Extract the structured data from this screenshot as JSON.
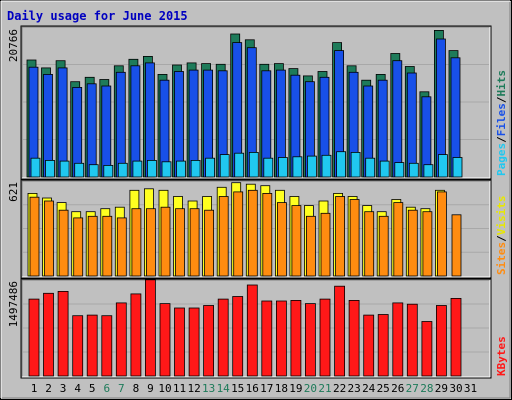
{
  "title": "Daily usage for June 2015",
  "colors": {
    "background": "#c0c0c0",
    "title": "#0000c0",
    "hits": "#1e7b5a",
    "files": "#1850e8",
    "pages": "#20c8f0",
    "visits": "#ffff20",
    "sites": "#ff8c10",
    "kbytes": "#ff1818",
    "weekend_day": "#1e7b5a"
  },
  "panels": {
    "top": {
      "max_label": "20766",
      "legend": [
        "Pages",
        "Files",
        "Hits"
      ],
      "legend_sep": "/"
    },
    "middle": {
      "max_label": "621",
      "legend": [
        "Sites",
        "Visits"
      ],
      "legend_sep": "/"
    },
    "bottom": {
      "max_label": "1497486",
      "legend": [
        "KBytes"
      ]
    }
  },
  "chart_data": [
    {
      "type": "bar",
      "title": "Daily usage for June 2015",
      "categories": [
        "1",
        "2",
        "3",
        "4",
        "5",
        "6",
        "7",
        "8",
        "9",
        "10",
        "11",
        "12",
        "13",
        "14",
        "15",
        "16",
        "17",
        "18",
        "19",
        "20",
        "21",
        "22",
        "23",
        "24",
        "25",
        "26",
        "27",
        "28",
        "29",
        "30",
        "31"
      ],
      "weekend_days": [
        "6",
        "7",
        "13",
        "14",
        "20",
        "21",
        "27",
        "28"
      ],
      "ylim": [
        0,
        20766
      ],
      "series": [
        {
          "name": "Hits",
          "values": [
            16200,
            15100,
            16100,
            13200,
            13800,
            13500,
            15400,
            16300,
            16700,
            14200,
            15500,
            15800,
            15700,
            15600,
            19800,
            19000,
            15600,
            15700,
            15000,
            14000,
            14600,
            18600,
            15400,
            13400,
            14200,
            17100,
            15300,
            11800,
            20300,
            17500,
            null
          ]
        },
        {
          "name": "Files",
          "values": [
            15200,
            14200,
            15100,
            12400,
            12900,
            12600,
            14500,
            15400,
            15800,
            13400,
            14600,
            14800,
            14800,
            14700,
            18600,
            17900,
            14700,
            14800,
            14100,
            13200,
            13800,
            17500,
            14500,
            12600,
            13400,
            16100,
            14400,
            11100,
            19100,
            16500,
            null
          ]
        },
        {
          "name": "Pages",
          "values": [
            2600,
            2300,
            2200,
            1900,
            1700,
            1600,
            1900,
            2200,
            2300,
            2100,
            2200,
            2300,
            2600,
            3100,
            3300,
            3400,
            2600,
            2700,
            2800,
            2900,
            3000,
            3500,
            3400,
            2600,
            2200,
            2000,
            1900,
            1700,
            3100,
            2700,
            null
          ]
        }
      ]
    },
    {
      "type": "bar",
      "ylim": [
        0,
        621
      ],
      "series": [
        {
          "name": "Visits",
          "values": [
            540,
            510,
            480,
            420,
            420,
            440,
            450,
            560,
            570,
            560,
            520,
            490,
            520,
            580,
            610,
            600,
            590,
            560,
            520,
            460,
            490,
            540,
            520,
            460,
            420,
            500,
            450,
            440,
            560,
            null,
            null
          ]
        },
        {
          "name": "Sites",
          "values": [
            515,
            490,
            430,
            380,
            390,
            390,
            380,
            440,
            440,
            450,
            440,
            440,
            430,
            520,
            550,
            560,
            540,
            480,
            460,
            390,
            410,
            520,
            500,
            420,
            390,
            480,
            430,
            420,
            550,
            400,
            null
          ]
        }
      ]
    },
    {
      "type": "bar",
      "ylim": [
        0,
        1497486
      ],
      "series": [
        {
          "name": "KBytes",
          "values": [
            1200000,
            1290000,
            1320000,
            940000,
            950000,
            940000,
            1140000,
            1280000,
            1500000,
            1130000,
            1060000,
            1060000,
            1100000,
            1200000,
            1240000,
            1420000,
            1170000,
            1170000,
            1180000,
            1130000,
            1200000,
            1400000,
            1180000,
            950000,
            960000,
            1140000,
            1120000,
            850000,
            1100000,
            1210000,
            null
          ]
        }
      ]
    }
  ]
}
